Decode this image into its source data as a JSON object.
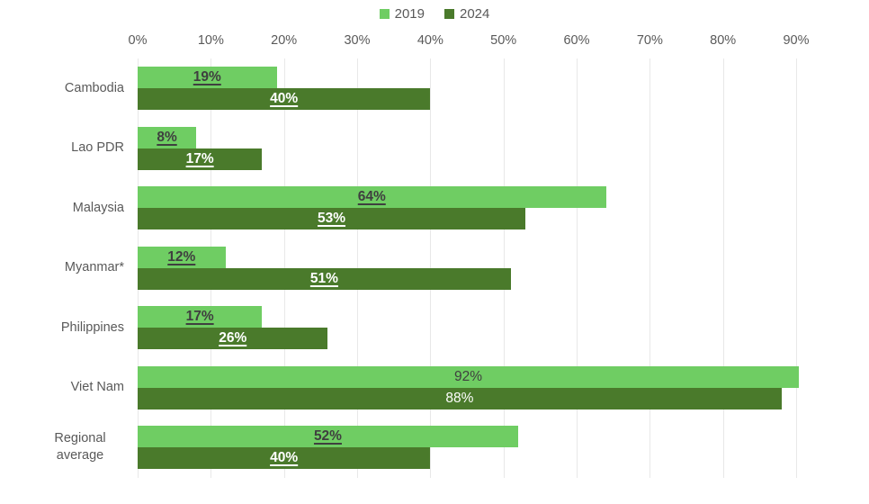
{
  "chart_data": {
    "type": "bar",
    "orientation": "horizontal",
    "title": "",
    "categories": [
      "Cambodia",
      "Lao PDR",
      "Malaysia",
      "Myanmar*",
      "Philippines",
      "Viet Nam",
      "Regional average"
    ],
    "series": [
      {
        "name": "2019",
        "color": "#6FCD63",
        "values": [
          19,
          8,
          64,
          12,
          17,
          92,
          52
        ]
      },
      {
        "name": "2024",
        "color": "#4A7A2B",
        "values": [
          40,
          17,
          53,
          51,
          26,
          88,
          40
        ]
      }
    ],
    "value_label_suffix": "%",
    "value_labels_underlined_by_category": [
      true,
      true,
      true,
      true,
      true,
      false,
      true
    ],
    "label_color_on_light": "#3F3F3F",
    "label_color_on_dark": "#FFFFFF",
    "axis": {
      "min": 0,
      "max": 90,
      "tick_step": 10,
      "tick_labels": [
        "0%",
        "10%",
        "20%",
        "30%",
        "40%",
        "50%",
        "60%",
        "70%",
        "80%",
        "90%"
      ],
      "gridlines": true,
      "grid_color": "#E8E8E8",
      "tick_label_color": "#595959"
    },
    "category_label_color": "#595959",
    "legend_position": "top-center"
  }
}
